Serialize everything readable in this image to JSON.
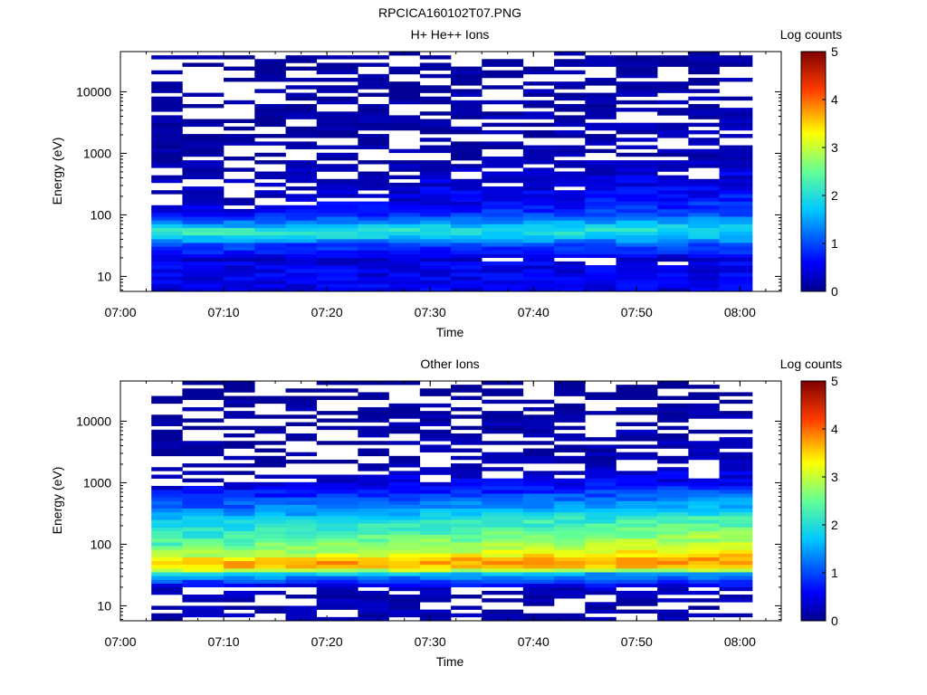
{
  "figure_title": "RPCICA160102T07.PNG",
  "chart_data": [
    {
      "type": "heatmap",
      "title": "H+ He++ Ions",
      "xlabel": "Time",
      "ylabel": "Energy (eV)",
      "x_ticks": [
        "07:00",
        "07:10",
        "07:20",
        "07:30",
        "07:40",
        "07:50",
        "08:00"
      ],
      "x_range": [
        "07:00",
        "08:04"
      ],
      "y_scale": "log",
      "y_ticks": [
        "10",
        "100",
        "1000",
        "10000"
      ],
      "y_range": [
        5.7,
        45000
      ],
      "colorbar": {
        "label": "Log counts",
        "ticks": [
          "0",
          "1",
          "2",
          "3",
          "4",
          "5"
        ],
        "range": [
          0,
          5
        ]
      },
      "time_bins": [
        "07:03",
        "07:06",
        "07:10",
        "07:13",
        "07:16",
        "07:19",
        "07:23",
        "07:26",
        "07:29",
        "07:32",
        "07:35",
        "07:39",
        "07:42",
        "07:45",
        "07:48",
        "07:52",
        "07:55",
        "07:58"
      ],
      "profile": {
        "energies": [
          15,
          20,
          27,
          33,
          40,
          47,
          55,
          65,
          80,
          100,
          150,
          250,
          500,
          1000,
          2000,
          5000,
          10000,
          20000,
          40000
        ],
        "log_counts_early": [
          0.5,
          0.4,
          0.8,
          0.9,
          1.6,
          2.1,
          2.2,
          1.6,
          1.1,
          0.6,
          0.3,
          0.3,
          0.3,
          0.2,
          0.2,
          0.2,
          0.2,
          0.2,
          0.2
        ],
        "log_counts_late": [
          0.5,
          0.4,
          0.9,
          1.1,
          1.4,
          1.8,
          1.9,
          1.8,
          1.5,
          1.1,
          0.8,
          0.6,
          0.4,
          0.3,
          0.3,
          0.3,
          0.3,
          0.2,
          0.2
        ]
      }
    },
    {
      "type": "heatmap",
      "title": "Other Ions",
      "xlabel": "Time",
      "ylabel": "Energy (eV)",
      "x_ticks": [
        "07:00",
        "07:10",
        "07:20",
        "07:30",
        "07:40",
        "07:50",
        "08:00"
      ],
      "x_range": [
        "07:00",
        "08:04"
      ],
      "y_scale": "log",
      "y_ticks": [
        "10",
        "100",
        "1000",
        "10000"
      ],
      "y_range": [
        5.7,
        45000
      ],
      "colorbar": {
        "label": "Log counts",
        "ticks": [
          "0",
          "1",
          "2",
          "3",
          "4",
          "5"
        ],
        "range": [
          0,
          5
        ]
      },
      "time_bins": [
        "07:03",
        "07:06",
        "07:10",
        "07:13",
        "07:16",
        "07:19",
        "07:23",
        "07:26",
        "07:29",
        "07:32",
        "07:35",
        "07:39",
        "07:42",
        "07:45",
        "07:48",
        "07:52",
        "07:55",
        "07:58"
      ],
      "profile": {
        "energies": [
          15,
          20,
          27,
          33,
          40,
          47,
          55,
          65,
          80,
          100,
          150,
          250,
          500,
          1000,
          2000,
          5000,
          10000,
          20000,
          40000
        ],
        "log_counts_early": [
          0.3,
          0.4,
          1.2,
          1.8,
          3.4,
          3.7,
          3.6,
          3.0,
          2.6,
          2.4,
          2.1,
          1.7,
          0.9,
          0.3,
          0.2,
          0.2,
          0.2,
          0.2,
          0.1
        ],
        "log_counts_late": [
          0.3,
          0.4,
          1.0,
          1.5,
          3.5,
          3.8,
          3.9,
          3.6,
          3.3,
          3.0,
          2.7,
          2.3,
          1.4,
          0.6,
          0.3,
          0.3,
          0.3,
          0.2,
          0.1
        ]
      }
    }
  ]
}
